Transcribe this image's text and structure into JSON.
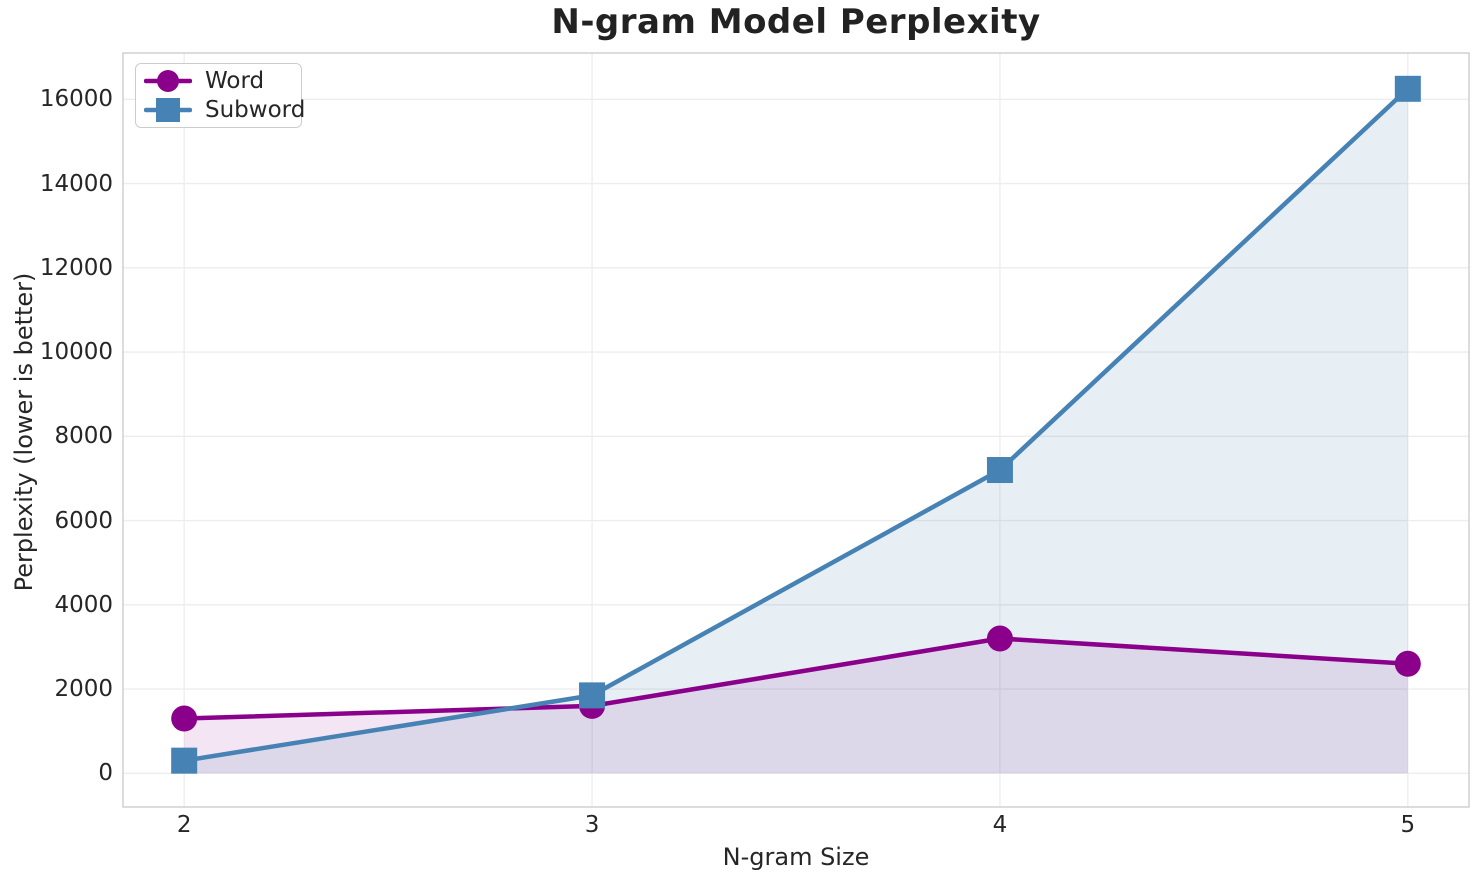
{
  "chart_data": {
    "type": "line",
    "title": "N-gram Model Perplexity",
    "xlabel": "N-gram Size",
    "ylabel": "Perplexity (lower is better)",
    "x": [
      2,
      3,
      4,
      5
    ],
    "series": [
      {
        "name": "Word",
        "marker": "circle",
        "color": "#8B008B",
        "fill_alpha": 0.1,
        "values": [
          1300,
          1600,
          3200,
          2600
        ]
      },
      {
        "name": "Subword",
        "marker": "square",
        "color": "#4682B4",
        "fill_alpha": 0.13,
        "values": [
          300,
          1850,
          7200,
          16250
        ]
      }
    ],
    "xticks": [
      2,
      3,
      4,
      5
    ],
    "yticks": [
      0,
      2000,
      4000,
      6000,
      8000,
      10000,
      12000,
      14000,
      16000
    ],
    "xlim": [
      1.85,
      5.15
    ],
    "ylim": [
      -800,
      17100
    ],
    "baseline": 0,
    "grid": true,
    "area_fill": true,
    "legend_position": "upper-left"
  },
  "colors": {
    "background": "#FFFFFF",
    "grid": "#EDEDED",
    "spine": "#C9C9C9",
    "text": "#262626"
  }
}
